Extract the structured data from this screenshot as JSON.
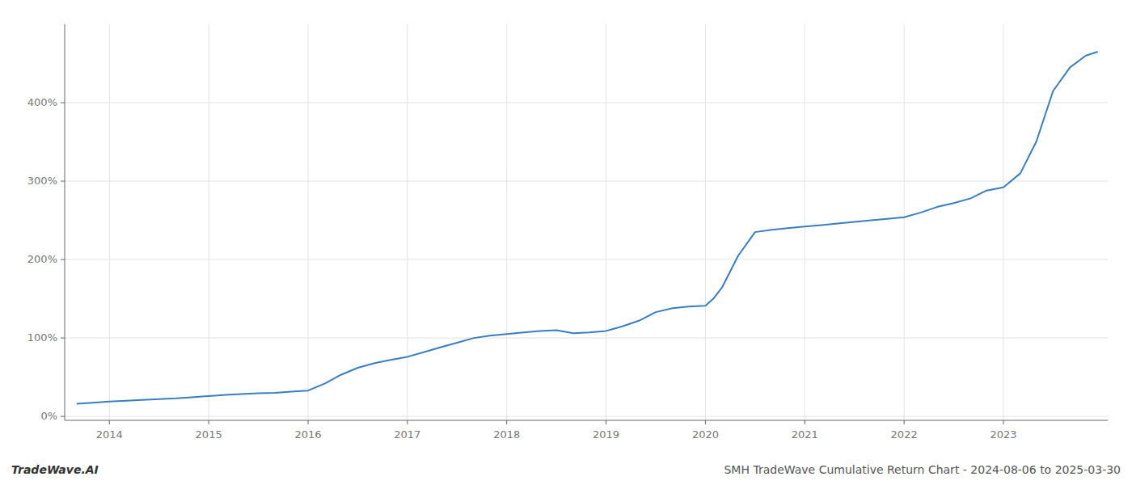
{
  "chart_data": {
    "type": "line",
    "title": "SMH TradeWave Cumulative Return Chart - 2024-08-06 to 2025-03-30",
    "annotations": [
      "TradeWave.AI"
    ],
    "color": "#3a7ebf",
    "grid": true,
    "x": [
      2013.67,
      2013.83,
      2014.0,
      2014.17,
      2014.33,
      2014.5,
      2014.67,
      2014.83,
      2015.0,
      2015.17,
      2015.33,
      2015.5,
      2015.67,
      2015.83,
      2016.0,
      2016.17,
      2016.33,
      2016.5,
      2016.67,
      2016.83,
      2017.0,
      2017.17,
      2017.33,
      2017.5,
      2017.67,
      2017.83,
      2018.0,
      2018.17,
      2018.33,
      2018.5,
      2018.67,
      2018.83,
      2019.0,
      2019.17,
      2019.33,
      2019.5,
      2019.67,
      2019.83,
      2020.0,
      2020.08,
      2020.17,
      2020.33,
      2020.5,
      2020.67,
      2020.83,
      2021.0,
      2021.17,
      2021.33,
      2021.5,
      2021.67,
      2021.83,
      2022.0,
      2022.17,
      2022.33,
      2022.5,
      2022.67,
      2022.83,
      2023.0,
      2023.17,
      2023.33,
      2023.5,
      2023.67,
      2023.83,
      2023.95
    ],
    "values": [
      0.16,
      0.175,
      0.19,
      0.2,
      0.21,
      0.22,
      0.23,
      0.245,
      0.26,
      0.275,
      0.285,
      0.295,
      0.3,
      0.315,
      0.33,
      0.42,
      0.53,
      0.62,
      0.68,
      0.72,
      0.76,
      0.82,
      0.88,
      0.94,
      1.0,
      1.03,
      1.05,
      1.07,
      1.09,
      1.1,
      1.06,
      1.07,
      1.09,
      1.15,
      1.22,
      1.33,
      1.38,
      1.4,
      1.41,
      1.5,
      1.65,
      2.05,
      2.35,
      2.38,
      2.4,
      2.42,
      2.44,
      2.46,
      2.48,
      2.5,
      2.52,
      2.54,
      2.6,
      2.67,
      2.72,
      2.78,
      2.88,
      2.92,
      3.1,
      3.5,
      4.15,
      4.45,
      4.6,
      4.65
    ],
    "xlim": [
      2013.55,
      2024.05
    ],
    "xticks": [
      2014,
      2015,
      2016,
      2017,
      2018,
      2019,
      2020,
      2021,
      2022,
      2023
    ],
    "ylim": [
      -0.05,
      5.0
    ],
    "yticks": [
      {
        "value": 0.0,
        "label": "0%"
      },
      {
        "value": 1.0,
        "label": "100%"
      },
      {
        "value": 2.0,
        "label": "200%"
      },
      {
        "value": 3.0,
        "label": "300%"
      },
      {
        "value": 4.0,
        "label": "400%"
      }
    ]
  }
}
